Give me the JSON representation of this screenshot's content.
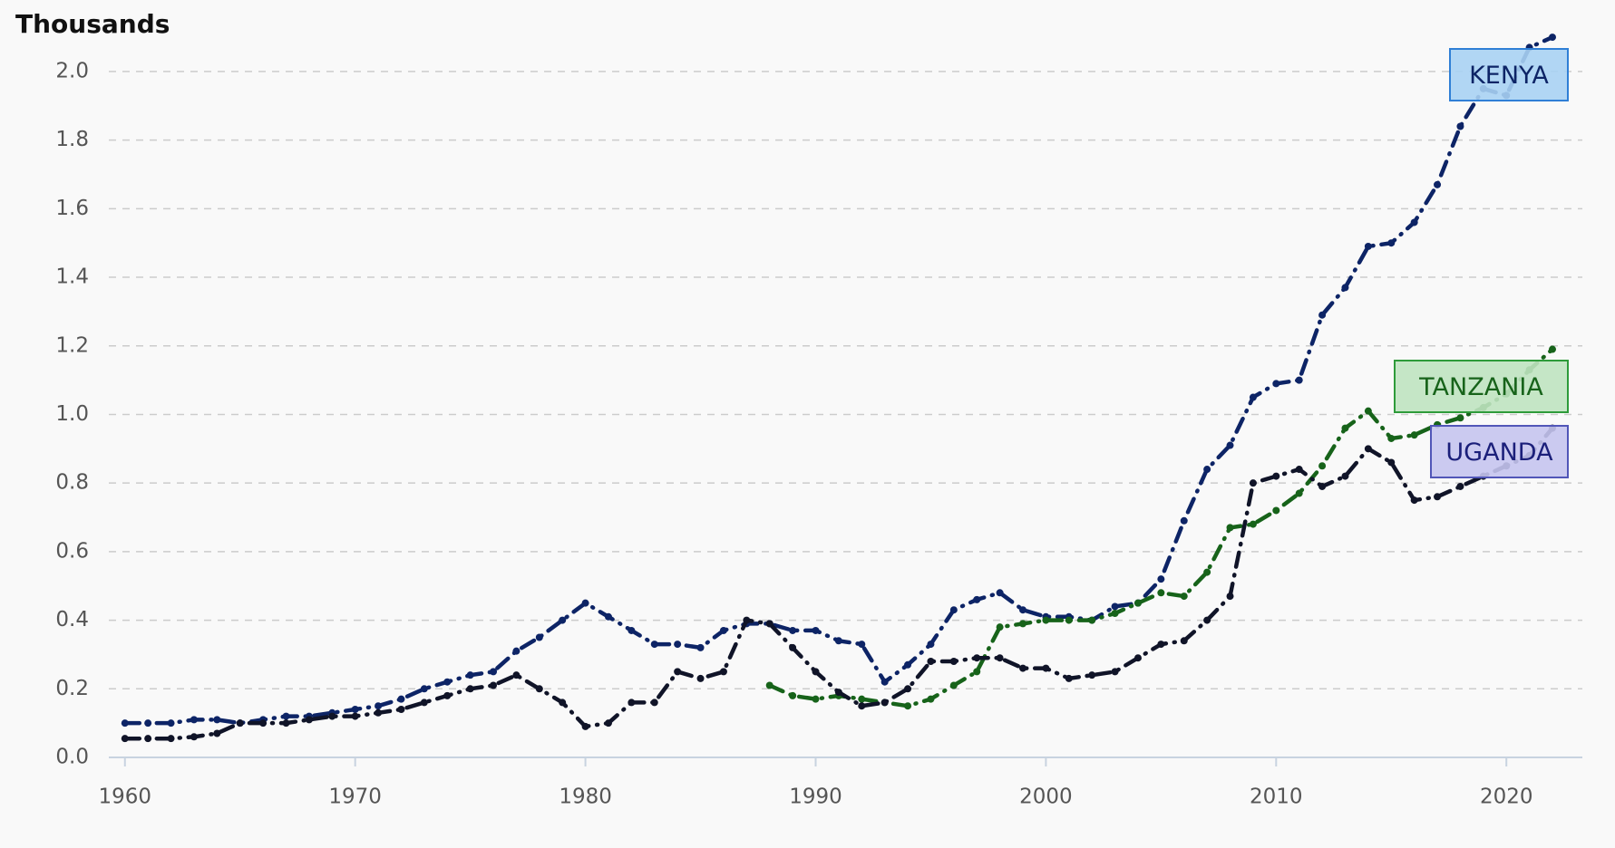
{
  "chart_data": {
    "type": "line",
    "y_axis_label": "Thousands",
    "x": [
      1960,
      1961,
      1962,
      1963,
      1964,
      1965,
      1966,
      1967,
      1968,
      1969,
      1970,
      1971,
      1972,
      1973,
      1974,
      1975,
      1976,
      1977,
      1978,
      1979,
      1980,
      1981,
      1982,
      1983,
      1984,
      1985,
      1986,
      1987,
      1988,
      1989,
      1990,
      1991,
      1992,
      1993,
      1994,
      1995,
      1996,
      1997,
      1998,
      1999,
      2000,
      2001,
      2002,
      2003,
      2004,
      2005,
      2006,
      2007,
      2008,
      2009,
      2010,
      2011,
      2012,
      2013,
      2014,
      2015,
      2016,
      2017,
      2018,
      2019,
      2020,
      2021,
      2022
    ],
    "series": [
      {
        "name": "KENYA",
        "color": "#0d2466",
        "values": [
          0.1,
          0.1,
          0.1,
          0.11,
          0.11,
          0.1,
          0.11,
          0.12,
          0.12,
          0.13,
          0.14,
          0.15,
          0.17,
          0.2,
          0.22,
          0.24,
          0.25,
          0.31,
          0.35,
          0.4,
          0.45,
          0.41,
          0.37,
          0.33,
          0.33,
          0.32,
          0.37,
          0.39,
          0.39,
          0.37,
          0.37,
          0.34,
          0.33,
          0.22,
          0.27,
          0.33,
          0.43,
          0.46,
          0.48,
          0.43,
          0.41,
          0.41,
          0.4,
          0.44,
          0.45,
          0.52,
          0.69,
          0.84,
          0.91,
          1.05,
          1.09,
          1.1,
          1.29,
          1.37,
          1.49,
          1.5,
          1.56,
          1.67,
          1.84,
          1.95,
          1.93,
          2.07,
          2.1
        ]
      },
      {
        "name": "TANZANIA",
        "color": "#17631a",
        "values": [
          null,
          null,
          null,
          null,
          null,
          null,
          null,
          null,
          null,
          null,
          null,
          null,
          null,
          null,
          null,
          null,
          null,
          null,
          null,
          null,
          null,
          null,
          null,
          null,
          null,
          null,
          null,
          null,
          0.21,
          0.18,
          0.17,
          0.18,
          0.17,
          0.16,
          0.15,
          0.17,
          0.21,
          0.25,
          0.38,
          0.39,
          0.4,
          0.4,
          0.4,
          0.42,
          0.45,
          0.48,
          0.47,
          0.54,
          0.67,
          0.68,
          0.72,
          0.77,
          0.85,
          0.96,
          1.01,
          0.93,
          0.94,
          0.97,
          0.99,
          1.02,
          1.06,
          1.13,
          1.19
        ]
      },
      {
        "name": "UGANDA",
        "color": "#101428",
        "values": [
          0.055,
          0.055,
          0.055,
          0.06,
          0.07,
          0.1,
          0.1,
          0.1,
          0.11,
          0.12,
          0.12,
          0.13,
          0.14,
          0.16,
          0.18,
          0.2,
          0.21,
          0.24,
          0.2,
          0.16,
          0.09,
          0.1,
          0.16,
          0.16,
          0.25,
          0.23,
          0.25,
          0.4,
          0.39,
          0.32,
          0.25,
          0.19,
          0.15,
          0.16,
          0.2,
          0.28,
          0.28,
          0.29,
          0.29,
          0.26,
          0.26,
          0.23,
          0.24,
          0.25,
          0.29,
          0.33,
          0.34,
          0.4,
          0.47,
          0.8,
          0.82,
          0.84,
          0.79,
          0.82,
          0.9,
          0.86,
          0.75,
          0.76,
          0.79,
          0.82,
          0.85,
          0.88,
          0.96
        ]
      }
    ],
    "xlim": [
      1959.3,
      2023.3
    ],
    "xticks": [
      1960,
      1970,
      1980,
      1990,
      2000,
      2010,
      2020
    ],
    "ylim": [
      0,
      2.05
    ],
    "yticks": [
      {
        "value": 0,
        "label": "0.0"
      },
      0.2,
      0.4,
      0.6,
      0.8,
      {
        "value": 1,
        "label": "1.0"
      },
      1.2,
      1.4,
      1.6,
      1.8,
      {
        "value": 2,
        "label": "2.0"
      }
    ],
    "grid": true
  }
}
